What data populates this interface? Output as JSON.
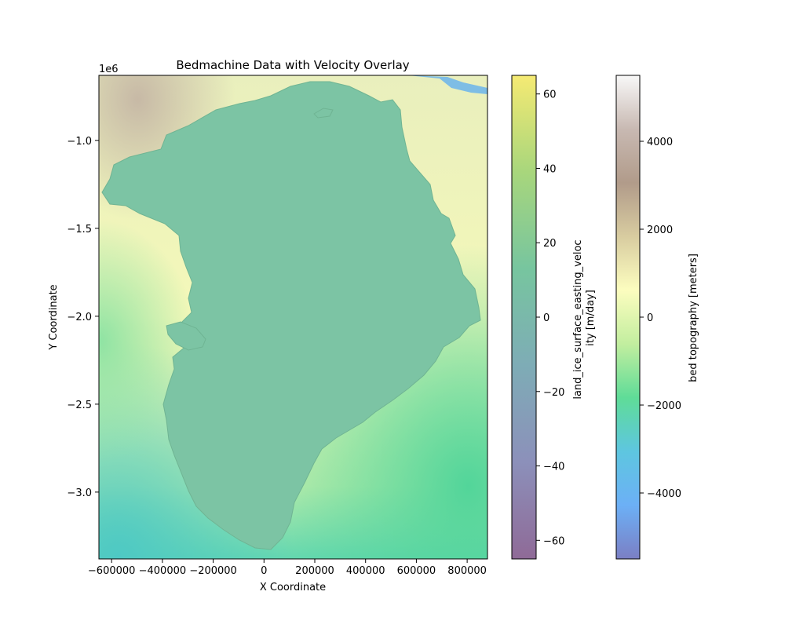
{
  "chart_data": {
    "type": "heatmap",
    "title": "Bedmachine Data with Velocity Overlay",
    "xlabel": "X Coordinate",
    "ylabel": "Y Coordinate",
    "y_offset_text": "1e6",
    "xlim": [
      -650000,
      880000
    ],
    "ylim": [
      -3380000,
      -630000
    ],
    "x_ticks": [
      {
        "value": -600000,
        "label": "−600000"
      },
      {
        "value": -400000,
        "label": "−400000"
      },
      {
        "value": -200000,
        "label": "−200000"
      },
      {
        "value": 0,
        "label": "0"
      },
      {
        "value": 200000,
        "label": "200000"
      },
      {
        "value": 400000,
        "label": "400000"
      },
      {
        "value": 600000,
        "label": "600000"
      },
      {
        "value": 800000,
        "label": "800000"
      }
    ],
    "y_ticks": [
      {
        "value": -1000000,
        "label": "−1.0"
      },
      {
        "value": -1500000,
        "label": "−1.5"
      },
      {
        "value": -2000000,
        "label": "−2.0"
      },
      {
        "value": -2500000,
        "label": "−2.5"
      },
      {
        "value": -3000000,
        "label": "−3.0"
      }
    ],
    "colorbars": [
      {
        "name": "velocity",
        "label_lines": [
          "land_ice_surface_easting_veloc",
          "ity [m/day]"
        ],
        "range": [
          -65,
          65
        ],
        "ticks": [
          {
            "value": 60,
            "label": "60"
          },
          {
            "value": 40,
            "label": "40"
          },
          {
            "value": 20,
            "label": "20"
          },
          {
            "value": 0,
            "label": "0"
          },
          {
            "value": -20,
            "label": "−20"
          },
          {
            "value": -40,
            "label": "−40"
          },
          {
            "value": -60,
            "label": "−60"
          }
        ],
        "gradient": [
          "#f5ea73",
          "#a8d67c",
          "#77c59f",
          "#7eacb6",
          "#8c90ba",
          "#8f6a97"
        ]
      },
      {
        "name": "bed-topography",
        "label_lines": [
          "bed topography [meters]"
        ],
        "range": [
          -5500,
          5500
        ],
        "ticks": [
          {
            "value": 4000,
            "label": "4000"
          },
          {
            "value": 2000,
            "label": "2000"
          },
          {
            "value": 0,
            "label": "0"
          },
          {
            "value": -2000,
            "label": "−2000"
          },
          {
            "value": -4000,
            "label": "−4000"
          }
        ],
        "gradient": [
          "#f8f8f8",
          "#c8b9b2",
          "#b19b8a",
          "#d8cca0",
          "#fcfdbf",
          "#c2ee9f",
          "#5fdc98",
          "#5ec6e0",
          "#6cb0f6",
          "#7b7fc4"
        ]
      }
    ]
  }
}
